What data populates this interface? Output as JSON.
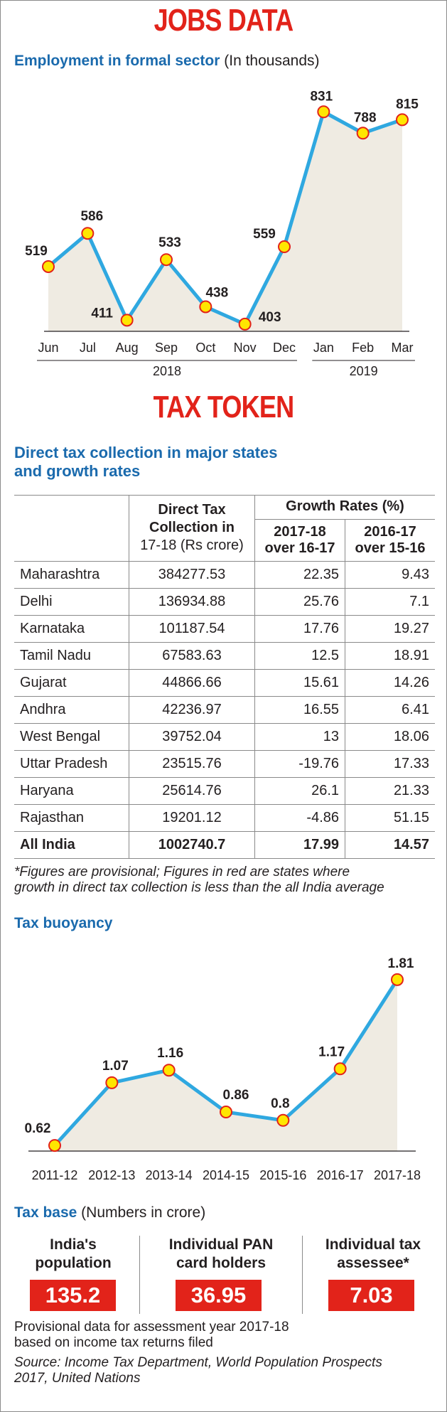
{
  "jobs": {
    "title": "JOBS DATA",
    "subtitle_bold": "Employment in formal sector",
    "subtitle_unit": "(In thousands)"
  },
  "tax_token": {
    "title": "TAX TOKEN",
    "table_title_line1": "Direct tax collection in major states",
    "table_title_line2": "and growth rates",
    "col_header_collection": [
      "Direct Tax",
      "Collection in",
      "17-18 (Rs crore)"
    ],
    "col_header_growth": "Growth Rates (%)",
    "col_header_g1": [
      "2017-18",
      "over 16-17"
    ],
    "col_header_g2": [
      "2016-17",
      "over 15-16"
    ],
    "rows": [
      {
        "state": "Maharashtra",
        "collection": "384277.53",
        "g1": "22.35",
        "g2": "9.43"
      },
      {
        "state": "Delhi",
        "collection": "136934.88",
        "g1": "25.76",
        "g2": "7.1"
      },
      {
        "state": "Karnataka",
        "collection": "101187.54",
        "g1": "17.76",
        "g2": "19.27"
      },
      {
        "state": "Tamil Nadu",
        "collection": "67583.63",
        "g1": "12.5",
        "g2": "18.91"
      },
      {
        "state": "Gujarat",
        "collection": "44866.66",
        "g1": "15.61",
        "g2": "14.26"
      },
      {
        "state": "Andhra",
        "collection": "42236.97",
        "g1": "16.55",
        "g2": "6.41"
      },
      {
        "state": "West Bengal",
        "collection": "39752.04",
        "g1": "13",
        "g2": "18.06"
      },
      {
        "state": "Uttar Pradesh",
        "collection": "23515.76",
        "g1": "-19.76",
        "g2": "17.33"
      },
      {
        "state": "Haryana",
        "collection": "25614.76",
        "g1": "26.1",
        "g2": "21.33"
      },
      {
        "state": "Rajasthan",
        "collection": "19201.12",
        "g1": "-4.86",
        "g2": "51.15"
      },
      {
        "state": "All India",
        "collection": "1002740.7",
        "g1": "17.99",
        "g2": "14.57",
        "bold": true
      }
    ],
    "footnote_line1": "*Figures are provisional; Figures in red are states where",
    "footnote_line2": "growth in direct tax collection is less than the all India average"
  },
  "buoyancy": {
    "title": "Tax buoyancy"
  },
  "tax_base": {
    "title_bold": "Tax base",
    "title_unit": "(Numbers in crore)",
    "items": [
      {
        "label_line1": "India's",
        "label_line2": "population",
        "value": "135.2"
      },
      {
        "label_line1": "Individual PAN",
        "label_line2": "card holders",
        "value": "36.95"
      },
      {
        "label_line1": "Individual tax",
        "label_line2": "assessee*",
        "value": "7.03"
      }
    ],
    "note_line1": "Provisional data for assessment year 2017-18",
    "note_line2": "based on income tax returns filed",
    "source_line1": "Source: Income Tax Department, World Population Prospects",
    "source_line2": "2017, United Nations"
  },
  "colors": {
    "title_red": "#e2231a",
    "heading_blue": "#1a6aad",
    "line": "#2fa8e0",
    "area": "#efebe2",
    "marker_fill": "#ffe600",
    "marker_stroke": "#e2231a"
  },
  "chart_data": [
    {
      "type": "area",
      "title": "Employment in formal sector",
      "ylabel": "(In thousands)",
      "categories": [
        "Jun",
        "Jul",
        "Aug",
        "Sep",
        "Oct",
        "Nov",
        "Dec",
        "Jan",
        "Feb",
        "Mar"
      ],
      "year_groups": [
        {
          "label": "2018",
          "span": [
            "Jun",
            "Dec"
          ]
        },
        {
          "label": "2019",
          "span": [
            "Jan",
            "Mar"
          ]
        }
      ],
      "values": [
        519,
        586,
        411,
        533,
        438,
        403,
        559,
        831,
        788,
        815
      ],
      "ylim": [
        400,
        850
      ],
      "grid": false
    },
    {
      "type": "area",
      "title": "Tax buoyancy",
      "categories": [
        "2011-12",
        "2012-13",
        "2013-14",
        "2014-15",
        "2015-16",
        "2016-17",
        "2017-18"
      ],
      "values": [
        0.62,
        1.07,
        1.16,
        0.86,
        0.8,
        1.17,
        1.81
      ],
      "ylim": [
        0.6,
        1.85
      ],
      "grid": false
    }
  ]
}
